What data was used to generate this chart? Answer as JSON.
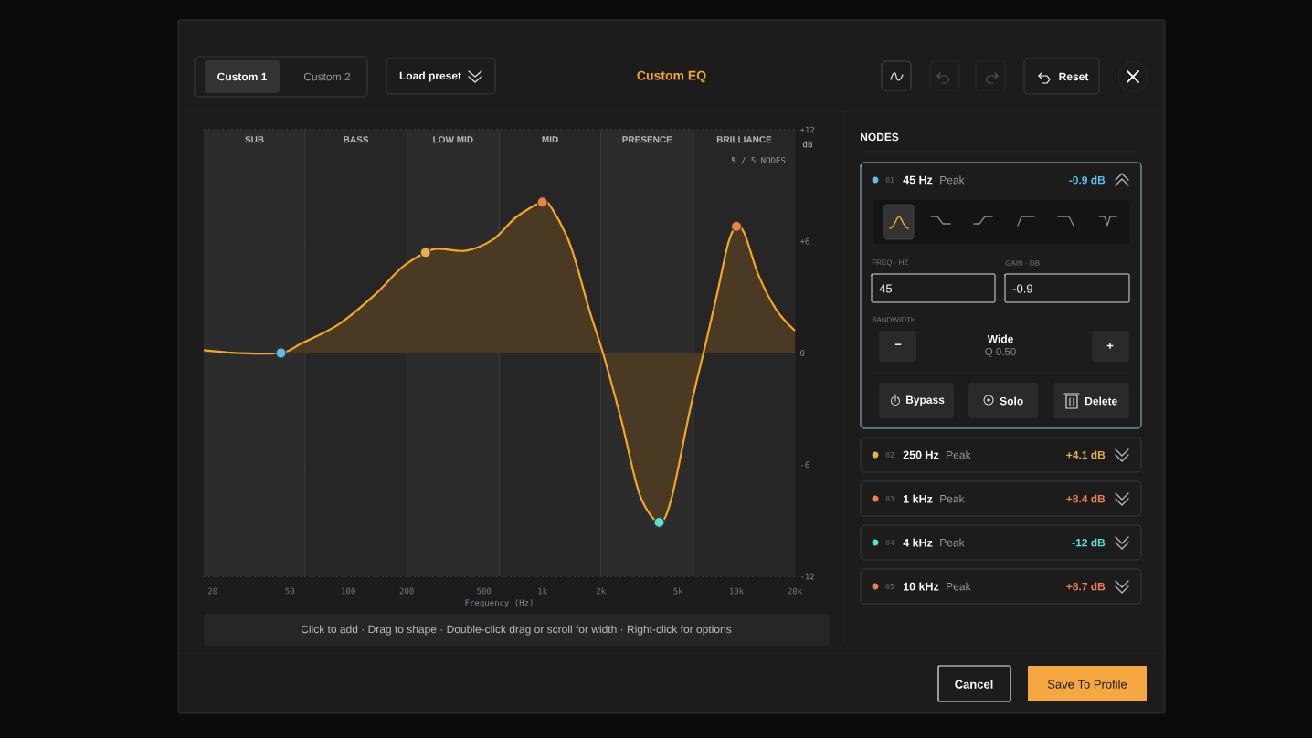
{
  "chart_data": {
    "type": "area",
    "title": "Custom EQ",
    "xlabel": "Frequency (Hz)",
    "ylabel": "dB",
    "log": "x",
    "grid": true,
    "xlim": [
      18,
      20000
    ],
    "ylim": [
      -12,
      12
    ],
    "xticks": [
      20,
      50,
      100,
      200,
      500,
      {
        "value": 1000,
        "label": "1k"
      },
      {
        "value": 2000,
        "label": "2k"
      },
      {
        "value": 5000,
        "label": "5k"
      },
      {
        "value": 10000,
        "label": "10k"
      },
      {
        "value": 20000,
        "label": "20k"
      }
    ],
    "yticks": [
      -12,
      -6,
      0,
      {
        "value": 6,
        "label": "+6"
      },
      {
        "value": 12,
        "label": "+12"
      }
    ],
    "bands": [
      {
        "axis": "x",
        "from": 18,
        "to": 60,
        "label": "SUB",
        "color": "#2c2c2c"
      },
      {
        "axis": "x",
        "from": 60,
        "to": 200,
        "label": "BASS",
        "color": "#262626"
      },
      {
        "axis": "x",
        "from": 200,
        "to": 600,
        "label": "LOW MID",
        "color": "#2c2c2c"
      },
      {
        "axis": "x",
        "from": 600,
        "to": 2000,
        "label": "MID",
        "color": "#262626"
      },
      {
        "axis": "x",
        "from": 2000,
        "to": 6000,
        "label": "PRESENCE",
        "color": "#2c2c2c"
      },
      {
        "axis": "x",
        "from": 6000,
        "to": 20000,
        "label": "BRILLIANCE",
        "color": "#262626"
      }
    ],
    "series": [
      {
        "color": "#f5a623",
        "x": [
          18,
          27,
          45,
          57,
          88,
          136,
          189,
          250,
          291,
          404,
          558,
          733,
          1000,
          1130,
          1404,
          1746,
          2052,
          2550,
          3170,
          4000,
          4630,
          5750,
          6760,
          7960,
          9070,
          10000,
          11020,
          12970,
          16100,
          20000
        ],
        "values": [
          0.15,
          0,
          0,
          0.5,
          1.5,
          3.1,
          4.6,
          5.4,
          5.6,
          5.5,
          6.1,
          7.3,
          8.1,
          7.7,
          5.7,
          2.3,
          0,
          -3.6,
          -7.6,
          -9.1,
          -7.8,
          -3.1,
          0,
          3.2,
          5.9,
          6.8,
          6.4,
          4.2,
          2.3,
          1.2
        ]
      },
      {
        "type": "scatter",
        "marker": "circle",
        "x": [
          45,
          250,
          1000,
          4000,
          10000
        ],
        "values": [
          0,
          5.4,
          8.1,
          -9.1,
          6.8
        ],
        "colors": [
          "#5bc0eb",
          "#e8b04a",
          "#ee8048",
          "#4ee6d6",
          "#ee8048"
        ]
      }
    ],
    "annotations": [
      "Custom 1",
      "Custom 2",
      "Load preset",
      "Reset",
      "**5** / 5 NODES",
      "Click to add · Drag to shape · Double-click drag or scroll for width · Right-click for options",
      "NODES",
      "01",
      "45 Hz",
      "Peak",
      "-0.9 dB",
      "FREQ · HZ",
      "GAIN · DB",
      "45",
      "-0.9",
      "BANDWIDTH",
      "−",
      "Wide",
      "Q 0.50",
      "+",
      "Bypass",
      "Solo",
      "Delete",
      "02",
      "250 Hz",
      "Peak",
      "+4.1 dB",
      "03",
      "1 kHz",
      "Peak",
      "+8.4 dB",
      "04",
      "4 kHz",
      "Peak",
      "-12 dB",
      "05",
      "10 kHz",
      "Peak",
      "+8.7 dB",
      "Cancel",
      "Save To Profile"
    ]
  }
}
